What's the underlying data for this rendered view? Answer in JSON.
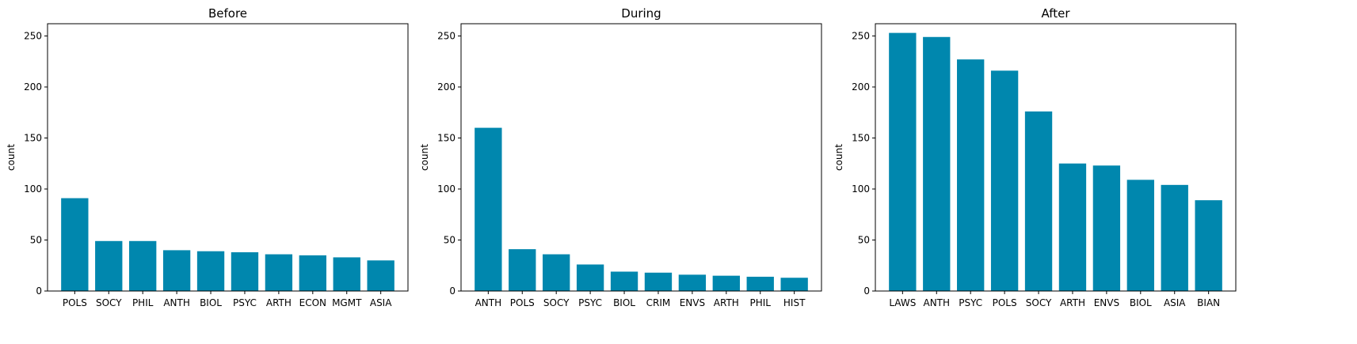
{
  "chart_data": [
    {
      "type": "bar",
      "title": "Before",
      "xlabel": "",
      "ylabel": "count",
      "ylim": [
        0,
        262
      ],
      "yticks": [
        0,
        50,
        100,
        150,
        200,
        250
      ],
      "categories": [
        "POLS",
        "SOCY",
        "PHIL",
        "ANTH",
        "BIOL",
        "PSYC",
        "ARTH",
        "ECON",
        "MGMT",
        "ASIA"
      ],
      "values": [
        91,
        49,
        49,
        40,
        39,
        38,
        36,
        35,
        33,
        30
      ],
      "color": "#0087ae",
      "grid": false
    },
    {
      "type": "bar",
      "title": "During",
      "xlabel": "",
      "ylabel": "count",
      "ylim": [
        0,
        262
      ],
      "yticks": [
        0,
        50,
        100,
        150,
        200,
        250
      ],
      "categories": [
        "ANTH",
        "POLS",
        "SOCY",
        "PSYC",
        "BIOL",
        "CRIM",
        "ENVS",
        "ARTH",
        "PHIL",
        "HIST"
      ],
      "values": [
        160,
        41,
        36,
        26,
        19,
        18,
        16,
        15,
        14,
        13
      ],
      "color": "#0087ae",
      "grid": false
    },
    {
      "type": "bar",
      "title": "After",
      "xlabel": "",
      "ylabel": "count",
      "ylim": [
        0,
        262
      ],
      "yticks": [
        0,
        50,
        100,
        150,
        200,
        250
      ],
      "categories": [
        "LAWS",
        "ANTH",
        "PSYC",
        "POLS",
        "SOCY",
        "ARTH",
        "ENVS",
        "BIOL",
        "ASIA",
        "BIAN"
      ],
      "values": [
        253,
        249,
        227,
        216,
        176,
        125,
        123,
        109,
        104,
        89
      ],
      "color": "#0087ae",
      "grid": false
    }
  ]
}
